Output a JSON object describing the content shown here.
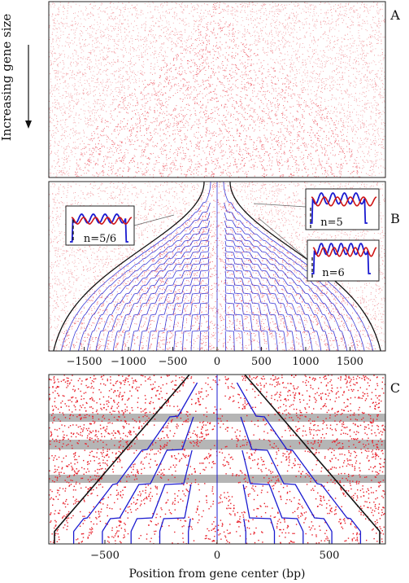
{
  "figure": {
    "side_label": "Increasing gene size",
    "panel_labels": [
      "A",
      "B",
      "C"
    ]
  },
  "colors": {
    "dots": "#e8202a",
    "dots_light": "#f2a0a5",
    "model_line": "#1a1ad0",
    "data_line": "#d01515",
    "envelope": "#111111",
    "band": "#b5b5b5"
  },
  "chart_data": [
    {
      "type": "scatter",
      "panel": "A",
      "description_visible": false,
      "x_range": [
        -1900,
        1900
      ],
      "ylabel_side": "Increasing gene size"
    },
    {
      "type": "scatter",
      "panel": "B",
      "x_range": [
        -1900,
        1900
      ],
      "xticks": [
        -1500,
        -1000,
        -500,
        0,
        500,
        1000,
        1500
      ],
      "xtick_labels": [
        "−1500",
        "−1000",
        "−500",
        "0",
        "500",
        "1000",
        "1500"
      ],
      "insets": [
        {
          "label": "n=5/6",
          "position": "left"
        },
        {
          "label": "n=5",
          "position": "right-top"
        },
        {
          "label": "n=6",
          "position": "right-bottom"
        }
      ]
    },
    {
      "type": "scatter",
      "panel": "C",
      "x_range": [
        -750,
        750
      ],
      "xticks": [
        -500,
        0,
        500
      ],
      "xtick_labels": [
        "−500",
        "0",
        "500"
      ],
      "xlabel": "Position from gene center (bp)"
    }
  ]
}
